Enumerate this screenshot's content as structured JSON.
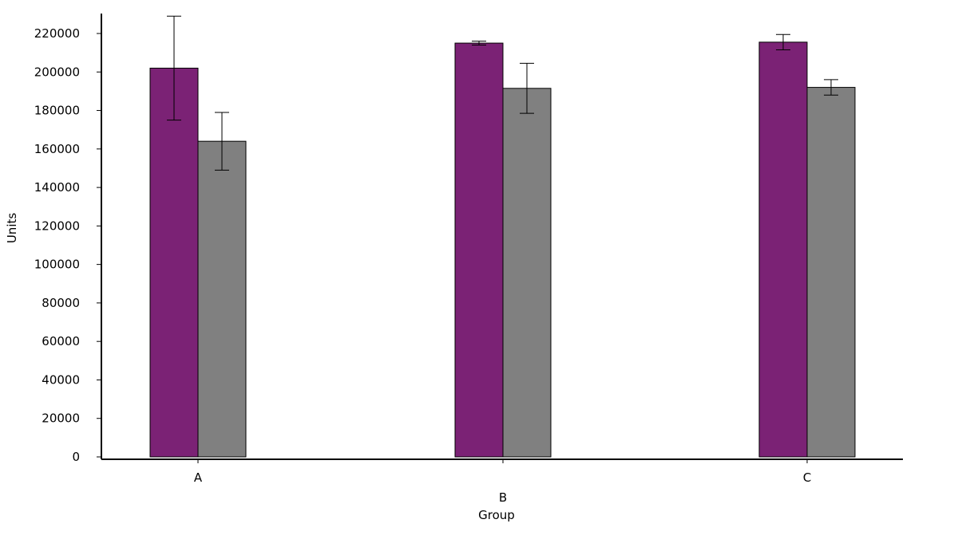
{
  "chart_data": {
    "type": "bar",
    "title": "",
    "xlabel": "Group",
    "ylabel": "Units",
    "categories": [
      "A",
      "B",
      "C"
    ],
    "ylim": [
      0,
      230000
    ],
    "yticks": [
      0,
      20000,
      40000,
      60000,
      80000,
      100000,
      120000,
      140000,
      160000,
      180000,
      200000,
      220000
    ],
    "grid": false,
    "legend": "none",
    "series": [
      {
        "color": "#7b2275",
        "values": [
          202000,
          215000,
          215500
        ],
        "error": [
          27000,
          1000,
          4000
        ]
      },
      {
        "color": "#808080",
        "values": [
          164000,
          191500,
          192000
        ],
        "error": [
          15000,
          13000,
          4000
        ]
      }
    ]
  }
}
